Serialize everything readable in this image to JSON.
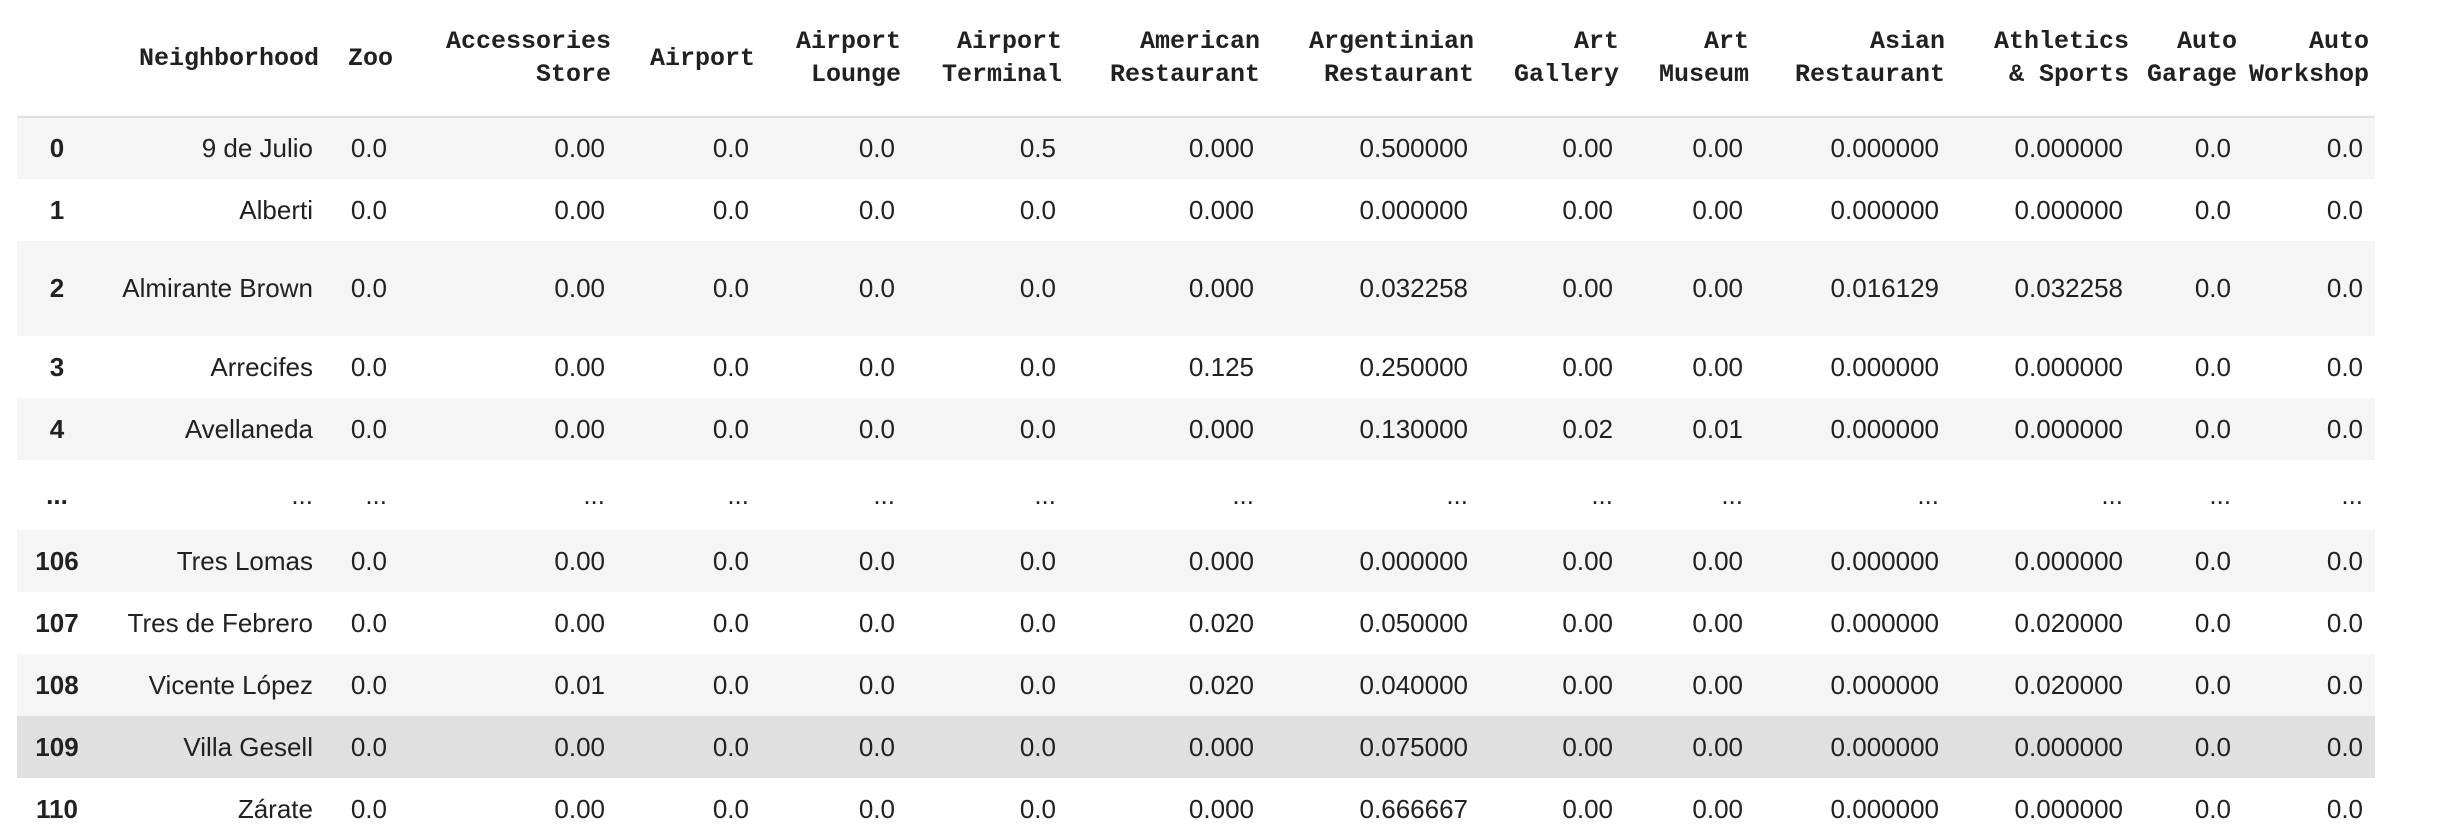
{
  "columns": [
    "",
    "Neighborhood",
    "Zoo",
    "Accessories\nStore",
    "Airport",
    "Airport\nLounge",
    "Airport\nTerminal",
    "American\nRestaurant",
    "Argentinian\nRestaurant",
    "Art\nGallery",
    "Art\nMuseum",
    "Asian\nRestaurant",
    "Athletics\n& Sports",
    "Auto\nGarage",
    "Auto\nWorkshop"
  ],
  "rows": [
    {
      "cells": [
        "0",
        "9 de Julio",
        "0.0",
        "0.00",
        "0.0",
        "0.0",
        "0.5",
        "0.000",
        "0.500000",
        "0.00",
        "0.00",
        "0.000000",
        "0.000000",
        "0.0",
        "0.0"
      ]
    },
    {
      "cells": [
        "1",
        "Alberti",
        "0.0",
        "0.00",
        "0.0",
        "0.0",
        "0.0",
        "0.000",
        "0.000000",
        "0.00",
        "0.00",
        "0.000000",
        "0.000000",
        "0.0",
        "0.0"
      ]
    },
    {
      "cells": [
        "2",
        "Almirante Brown",
        "0.0",
        "0.00",
        "0.0",
        "0.0",
        "0.0",
        "0.000",
        "0.032258",
        "0.00",
        "0.00",
        "0.016129",
        "0.032258",
        "0.0",
        "0.0"
      ]
    },
    {
      "cells": [
        "3",
        "Arrecifes",
        "0.0",
        "0.00",
        "0.0",
        "0.0",
        "0.0",
        "0.125",
        "0.250000",
        "0.00",
        "0.00",
        "0.000000",
        "0.000000",
        "0.0",
        "0.0"
      ]
    },
    {
      "cells": [
        "4",
        "Avellaneda",
        "0.0",
        "0.00",
        "0.0",
        "0.0",
        "0.0",
        "0.000",
        "0.130000",
        "0.02",
        "0.01",
        "0.000000",
        "0.000000",
        "0.0",
        "0.0"
      ]
    },
    {
      "cells": [
        "...",
        "...",
        "...",
        "...",
        "...",
        "...",
        "...",
        "...",
        "...",
        "...",
        "...",
        "...",
        "...",
        "...",
        "..."
      ]
    },
    {
      "cells": [
        "106",
        "Tres Lomas",
        "0.0",
        "0.00",
        "0.0",
        "0.0",
        "0.0",
        "0.000",
        "0.000000",
        "0.00",
        "0.00",
        "0.000000",
        "0.000000",
        "0.0",
        "0.0"
      ]
    },
    {
      "cells": [
        "107",
        "Tres de Febrero",
        "0.0",
        "0.00",
        "0.0",
        "0.0",
        "0.0",
        "0.020",
        "0.050000",
        "0.00",
        "0.00",
        "0.000000",
        "0.020000",
        "0.0",
        "0.0"
      ]
    },
    {
      "cells": [
        "108",
        "Vicente López",
        "0.0",
        "0.01",
        "0.0",
        "0.0",
        "0.0",
        "0.020",
        "0.040000",
        "0.00",
        "0.00",
        "0.000000",
        "0.020000",
        "0.0",
        "0.0"
      ]
    },
    {
      "cells": [
        "109",
        "Villa Gesell",
        "0.0",
        "0.00",
        "0.0",
        "0.0",
        "0.0",
        "0.000",
        "0.075000",
        "0.00",
        "0.00",
        "0.000000",
        "0.000000",
        "0.0",
        "0.0"
      ]
    },
    {
      "cells": [
        "110",
        "Zárate",
        "0.0",
        "0.00",
        "0.0",
        "0.0",
        "0.0",
        "0.000",
        "0.666667",
        "0.00",
        "0.00",
        "0.000000",
        "0.000000",
        "0.0",
        "0.0"
      ]
    }
  ],
  "colors": {
    "stripe": "#f5f5f5",
    "hover": "#e0e0e0",
    "text": "#212121",
    "header_rule": "#e0e0e0"
  }
}
